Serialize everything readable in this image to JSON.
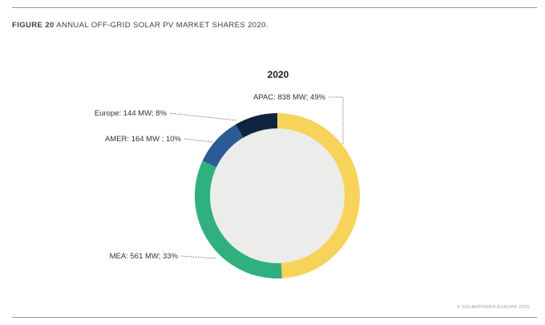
{
  "figure": {
    "number_label": "FIGURE 20",
    "title": "ANNUAL OFF-GRID SOLAR PV MARKET SHARES 2020."
  },
  "chart_data": {
    "type": "pie",
    "title": "2020",
    "categories": [
      "APAC",
      "MEA",
      "AMER",
      "Europe"
    ],
    "values": [
      838,
      561,
      164,
      144
    ],
    "unit": "MW",
    "shares": [
      49,
      33,
      10,
      8
    ],
    "labels": [
      "APAC: 838 MW; 49%",
      "MEA: 561 MW; 33%",
      "AMER: 164 MW ; 10%",
      "Europe: 144 MW; 8%"
    ],
    "colors": [
      "#f7d35a",
      "#2fb07e",
      "#2a5b96",
      "#10233f"
    ],
    "center_color": "#ececeb",
    "legend": "callout-labels"
  },
  "credit": "© SOLARPOWER EUROPE 2021"
}
